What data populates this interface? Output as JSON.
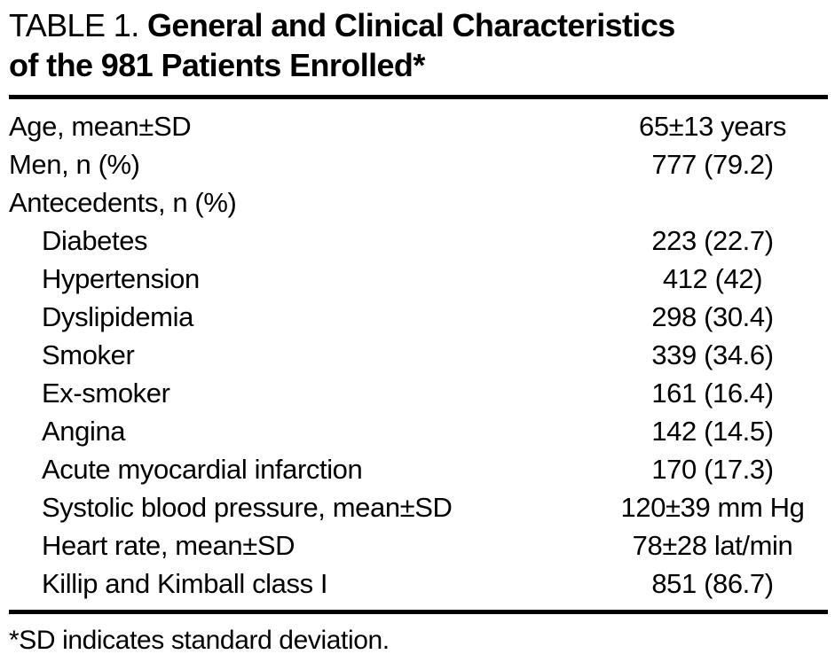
{
  "title": {
    "table_label": "TABLE 1. ",
    "line1_bold": "General and Clinical Characteristics",
    "line2_bold": "of the 981 Patients Enrolled*"
  },
  "table": {
    "rows": [
      {
        "label": "Age, mean±SD",
        "value": "65±13 years",
        "indent": false
      },
      {
        "label": "Men, n (%)",
        "value": "777 (79.2)",
        "indent": false
      },
      {
        "label": "Antecedents, n (%)",
        "value": "",
        "indent": false
      },
      {
        "label": "Diabetes",
        "value": "223 (22.7)",
        "indent": true
      },
      {
        "label": "Hypertension",
        "value": "412 (42)",
        "indent": true
      },
      {
        "label": "Dyslipidemia",
        "value": "298 (30.4)",
        "indent": true
      },
      {
        "label": "Smoker",
        "value": "339 (34.6)",
        "indent": true
      },
      {
        "label": "Ex-smoker",
        "value": "161 (16.4)",
        "indent": true
      },
      {
        "label": "Angina",
        "value": "142 (14.5)",
        "indent": true
      },
      {
        "label": "Acute myocardial infarction",
        "value": "170 (17.3)",
        "indent": true
      },
      {
        "label": "Systolic blood pressure, mean±SD",
        "value": "120±39 mm Hg",
        "indent": true
      },
      {
        "label": "Heart rate, mean±SD",
        "value": "78±28 lat/min",
        "indent": true
      },
      {
        "label": "Killip and Kimball class I",
        "value": "851 (86.7)",
        "indent": true
      }
    ]
  },
  "footnote": "*SD indicates standard deviation.",
  "colors": {
    "text": "#000000",
    "background": "#ffffff",
    "rule": "#000000"
  }
}
